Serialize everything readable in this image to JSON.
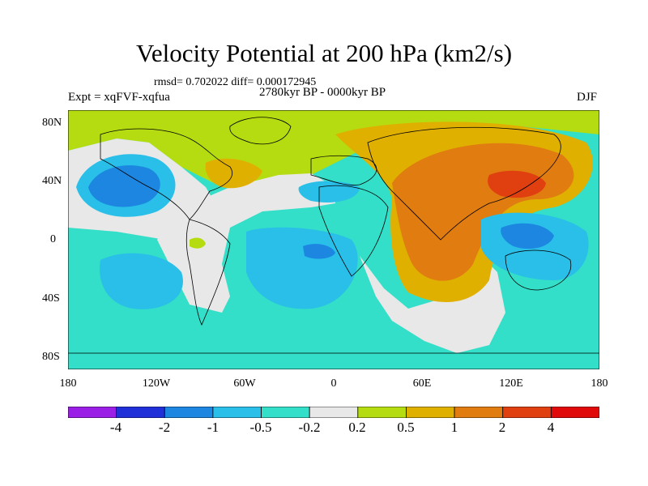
{
  "title": "Velocity Potential at 200 hPa (km2/s)",
  "stats_text": "rmsd= 0.702022 diff= 0.000172945",
  "period": "2780kyr BP - 0000kyr BP",
  "experiment": "Expt = xqFVF-xqfua",
  "season": "DJF",
  "lat_labels": [
    "80N",
    "40N",
    "0",
    "40S",
    "80S"
  ],
  "lon_labels": [
    "180",
    "120W",
    "60W",
    "0",
    "60E",
    "120E",
    "180"
  ],
  "colorbar": {
    "colors": [
      "#9b1ee6",
      "#2030d8",
      "#1c86e0",
      "#29bfe8",
      "#33dfc8",
      "#e8e8e8",
      "#b5dc10",
      "#e0b000",
      "#e07c10",
      "#e04010",
      "#e00a0a"
    ],
    "labels": [
      "-4",
      "-2",
      "-1",
      "-0.5",
      "-0.2",
      "0.2",
      "0.5",
      "1",
      "2",
      "4"
    ]
  }
}
